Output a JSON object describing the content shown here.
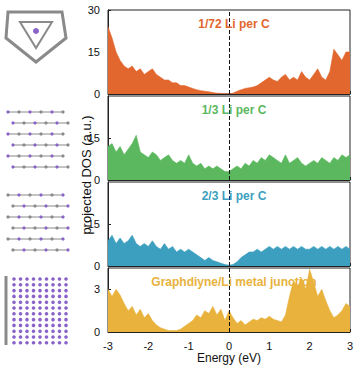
{
  "chart_data": [
    {
      "type": "area",
      "title": "1/72 Li per C",
      "color": "#e2672f",
      "ylabel": "projected DOS (a.u.)",
      "tick_labels": "y",
      "vline": 0,
      "xlim": [
        -3,
        3
      ],
      "xticks": [
        -3,
        -2,
        -1,
        0,
        1,
        2,
        3
      ],
      "ylim": [
        0,
        30
      ],
      "yticks": [
        0,
        15,
        30
      ],
      "x": [
        -3.0,
        -2.9,
        -2.8,
        -2.7,
        -2.6,
        -2.5,
        -2.4,
        -2.3,
        -2.2,
        -2.1,
        -2.0,
        -1.9,
        -1.8,
        -1.7,
        -1.6,
        -1.5,
        -1.4,
        -1.3,
        -1.2,
        -1.1,
        -1.0,
        -0.9,
        -0.8,
        -0.7,
        -0.6,
        -0.5,
        -0.4,
        -0.3,
        -0.2,
        -0.1,
        0.0,
        0.1,
        0.2,
        0.3,
        0.4,
        0.5,
        0.6,
        0.7,
        0.8,
        0.9,
        1.0,
        1.1,
        1.2,
        1.3,
        1.4,
        1.5,
        1.6,
        1.7,
        1.8,
        1.9,
        2.0,
        2.1,
        2.2,
        2.3,
        2.4,
        2.5,
        2.6,
        2.7,
        2.8,
        2.9,
        3.0
      ],
      "values": [
        24,
        20,
        15,
        12,
        10,
        9,
        10,
        8,
        9,
        7,
        8,
        9,
        7,
        6,
        5,
        5,
        4,
        4,
        3,
        3,
        2.5,
        2,
        1.5,
        1.2,
        1,
        0.8,
        0.5,
        0.3,
        0.2,
        0.1,
        0.1,
        0.3,
        1,
        1.5,
        2,
        2.2,
        2.5,
        3,
        4,
        5,
        6,
        5,
        4.5,
        6,
        7,
        5,
        6,
        5,
        8,
        6,
        5,
        7,
        9,
        6,
        5,
        8,
        16,
        14,
        12,
        15,
        15
      ]
    },
    {
      "type": "area",
      "title": "1/3 Li per C",
      "color": "#5cb85f",
      "tick_labels": "y",
      "vline": 0,
      "xlim": [
        -3,
        3
      ],
      "xticks": [
        -3,
        -2,
        -1,
        0,
        1,
        2,
        3
      ],
      "ylim": [
        0,
        30
      ],
      "yticks": [
        0,
        15
      ],
      "x": [
        -3.0,
        -2.9,
        -2.8,
        -2.7,
        -2.6,
        -2.5,
        -2.4,
        -2.3,
        -2.2,
        -2.1,
        -2.0,
        -1.9,
        -1.8,
        -1.7,
        -1.6,
        -1.5,
        -1.4,
        -1.3,
        -1.2,
        -1.1,
        -1.0,
        -0.9,
        -0.8,
        -0.7,
        -0.6,
        -0.5,
        -0.4,
        -0.3,
        -0.2,
        -0.1,
        0.0,
        0.1,
        0.2,
        0.3,
        0.4,
        0.5,
        0.6,
        0.7,
        0.8,
        0.9,
        1.0,
        1.1,
        1.2,
        1.3,
        1.4,
        1.5,
        1.6,
        1.7,
        1.8,
        1.9,
        2.0,
        2.1,
        2.2,
        2.3,
        2.4,
        2.5,
        2.6,
        2.7,
        2.8,
        2.9,
        3.0
      ],
      "values": [
        12,
        13,
        10,
        12,
        9,
        11,
        13,
        16,
        10,
        9,
        8,
        10,
        9,
        7,
        8,
        9,
        7,
        6,
        7,
        6,
        9,
        6,
        5,
        6,
        4,
        5,
        4,
        5,
        4,
        3,
        3,
        4,
        5,
        4,
        6,
        5,
        7,
        6,
        8,
        7,
        9,
        8,
        7,
        6,
        9,
        6,
        7,
        8,
        6,
        5,
        6,
        7,
        6,
        8,
        7,
        6,
        8,
        7,
        9,
        8,
        9
      ]
    },
    {
      "type": "area",
      "title": "2/3 Li per C",
      "color": "#3c9fbf",
      "tick_labels": "y",
      "vline": 0,
      "xlim": [
        -3,
        3
      ],
      "xticks": [
        -3,
        -2,
        -1,
        0,
        1,
        2,
        3
      ],
      "ylim": [
        0,
        30
      ],
      "yticks": [
        0,
        15
      ],
      "x": [
        -3.0,
        -2.9,
        -2.8,
        -2.7,
        -2.6,
        -2.5,
        -2.4,
        -2.3,
        -2.2,
        -2.1,
        -2.0,
        -1.9,
        -1.8,
        -1.7,
        -1.6,
        -1.5,
        -1.4,
        -1.3,
        -1.2,
        -1.1,
        -1.0,
        -0.9,
        -0.8,
        -0.7,
        -0.6,
        -0.5,
        -0.4,
        -0.3,
        -0.2,
        -0.1,
        0.0,
        0.1,
        0.2,
        0.3,
        0.4,
        0.5,
        0.6,
        0.7,
        0.8,
        0.9,
        1.0,
        1.1,
        1.2,
        1.3,
        1.4,
        1.5,
        1.6,
        1.7,
        1.8,
        1.9,
        2.0,
        2.1,
        2.2,
        2.3,
        2.4,
        2.5,
        2.6,
        2.7,
        2.8,
        2.9,
        3.0
      ],
      "values": [
        9,
        11,
        8,
        10,
        8,
        9,
        11,
        8,
        7,
        8,
        7,
        9,
        7,
        6,
        8,
        6,
        7,
        5,
        6,
        5,
        6,
        5,
        4,
        3,
        2,
        3,
        2,
        1.5,
        1,
        0.5,
        0.3,
        0.5,
        1.5,
        3,
        4,
        5,
        5,
        6,
        5,
        6,
        7,
        6,
        7,
        6,
        7,
        6,
        7,
        6,
        7,
        6,
        6,
        7,
        6,
        7,
        6,
        7,
        6,
        7,
        6,
        7,
        6
      ]
    },
    {
      "type": "area",
      "title": "Graphdiyne/Li metal junction",
      "color": "#e8b23c",
      "xlabel": "Energy (eV)",
      "vline": 0,
      "xlim": [
        -3,
        3
      ],
      "xticks": [
        -3,
        -2,
        -1,
        0,
        1,
        2,
        3
      ],
      "ylim": [
        0,
        4.5
      ],
      "yticks": [
        0,
        3
      ],
      "x": [
        -3.0,
        -2.9,
        -2.8,
        -2.7,
        -2.6,
        -2.5,
        -2.4,
        -2.3,
        -2.2,
        -2.1,
        -2.0,
        -1.9,
        -1.8,
        -1.7,
        -1.6,
        -1.5,
        -1.4,
        -1.3,
        -1.2,
        -1.1,
        -1.0,
        -0.9,
        -0.8,
        -0.7,
        -0.6,
        -0.5,
        -0.4,
        -0.3,
        -0.2,
        -0.1,
        0.0,
        0.1,
        0.2,
        0.3,
        0.4,
        0.5,
        0.6,
        0.7,
        0.8,
        0.9,
        1.0,
        1.1,
        1.2,
        1.3,
        1.4,
        1.5,
        1.6,
        1.7,
        1.8,
        1.9,
        2.0,
        2.1,
        2.2,
        2.3,
        2.4,
        2.5,
        2.6,
        2.7,
        2.8,
        2.9,
        3.0
      ],
      "values": [
        3,
        2.5,
        3,
        2.6,
        2,
        1.5,
        1.8,
        1.2,
        1.6,
        1,
        1.3,
        0.8,
        0.5,
        0.3,
        0.2,
        0.1,
        0.1,
        0.1,
        0.2,
        0.4,
        0.6,
        0.8,
        1.2,
        1.0,
        1.5,
        1.3,
        1.8,
        1.2,
        1.6,
        0.8,
        1.5,
        1.0,
        0.6,
        0.8,
        0.5,
        0.7,
        0.9,
        0.8,
        1.0,
        0.9,
        1.1,
        0.9,
        0.8,
        0.7,
        1.2,
        2.5,
        3.6,
        3.2,
        3.8,
        3.0,
        4.4,
        3.5,
        2.5,
        3.0,
        2.2,
        1.5,
        1.0,
        1.2,
        1.5,
        2.0,
        1.8
      ]
    }
  ]
}
